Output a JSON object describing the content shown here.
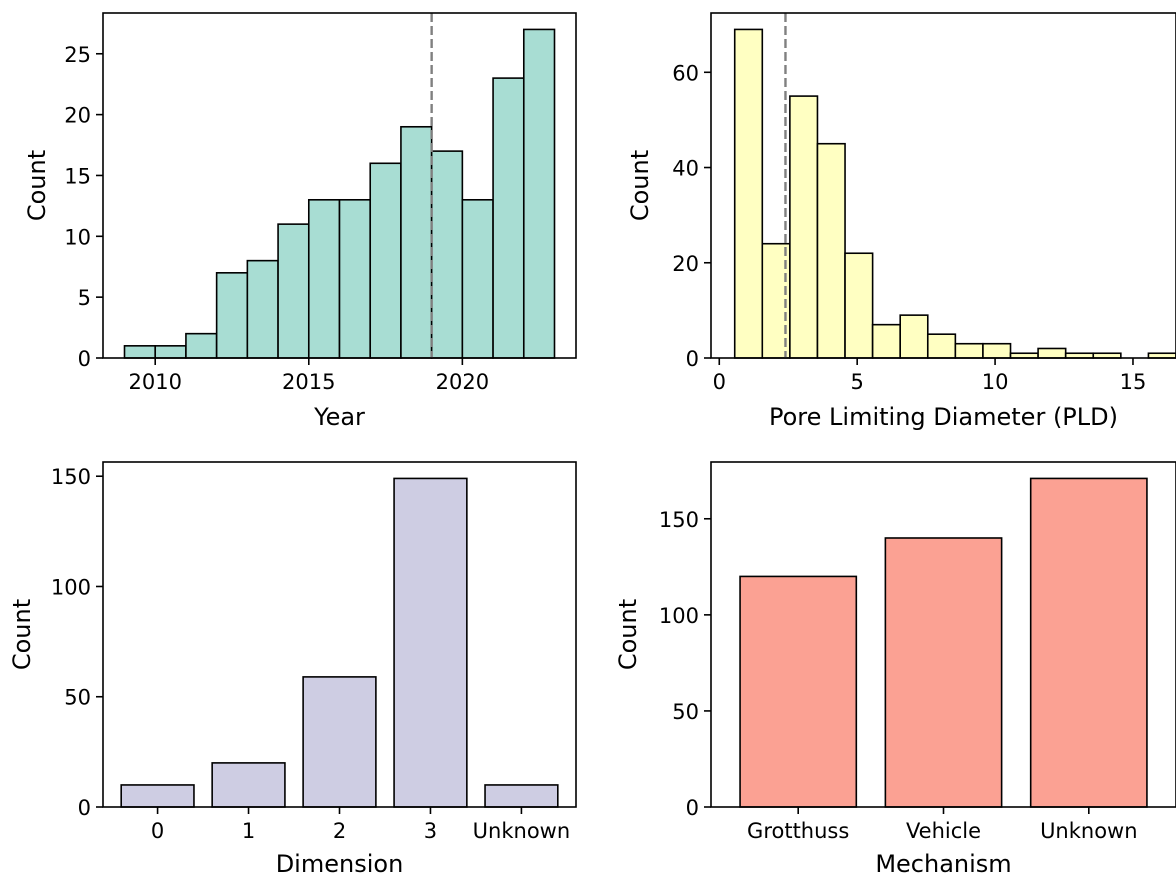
{
  "chart_data": [
    {
      "type": "bar",
      "subtype": "histogram",
      "bin_edges": [
        2009,
        2010,
        2011,
        2012,
        2013,
        2014,
        2015,
        2016,
        2017,
        2018,
        2019,
        2020,
        2021,
        2022,
        2023
      ],
      "values": [
        1,
        1,
        2,
        7,
        8,
        11,
        13,
        13,
        16,
        19,
        17,
        13,
        23,
        27
      ],
      "xlabel": "Year",
      "ylabel": "Count",
      "xticks": [
        2010,
        2015,
        2020
      ],
      "yticks": [
        0,
        5,
        10,
        15,
        20,
        25
      ],
      "xlim": [
        2008.3,
        2023.7
      ],
      "ylim": [
        0,
        28.35
      ],
      "vline": 2019,
      "color": "#a8ddd3"
    },
    {
      "type": "bar",
      "subtype": "histogram",
      "bin_edges": [
        0.56,
        1.56,
        2.56,
        3.56,
        4.56,
        5.56,
        6.56,
        7.56,
        8.56,
        9.56,
        10.56,
        11.56,
        12.56,
        13.56,
        14.56,
        15.56,
        16.56
      ],
      "values": [
        69,
        24,
        55,
        45,
        22,
        7,
        9,
        5,
        3,
        3,
        1,
        2,
        1,
        1,
        0,
        1
      ],
      "xlabel": "Pore Limiting Diameter (PLD)",
      "ylabel": "Count",
      "xticks": [
        0,
        5,
        10,
        15
      ],
      "yticks": [
        0,
        20,
        40,
        60
      ],
      "xlim": [
        -0.3,
        16.56
      ],
      "ylim": [
        0,
        72.45
      ],
      "vline": 2.4,
      "color": "#ffffc2"
    },
    {
      "type": "bar",
      "categories": [
        "0",
        "1",
        "2",
        "3",
        "Unknown"
      ],
      "values": [
        10,
        20,
        59,
        149,
        10
      ],
      "xlabel": "Dimension",
      "ylabel": "Count",
      "yticks": [
        0,
        50,
        100,
        150
      ],
      "ylim": [
        0,
        156.45
      ],
      "color": "#cecde3"
    },
    {
      "type": "bar",
      "categories": [
        "Grotthuss",
        "Vehicle",
        "Unknown"
      ],
      "values": [
        120,
        140,
        171
      ],
      "xlabel": "Mechanism",
      "ylabel": "Count",
      "yticks": [
        0,
        50,
        100,
        150
      ],
      "ylim": [
        0,
        179.55
      ],
      "color": "#fba193"
    }
  ]
}
